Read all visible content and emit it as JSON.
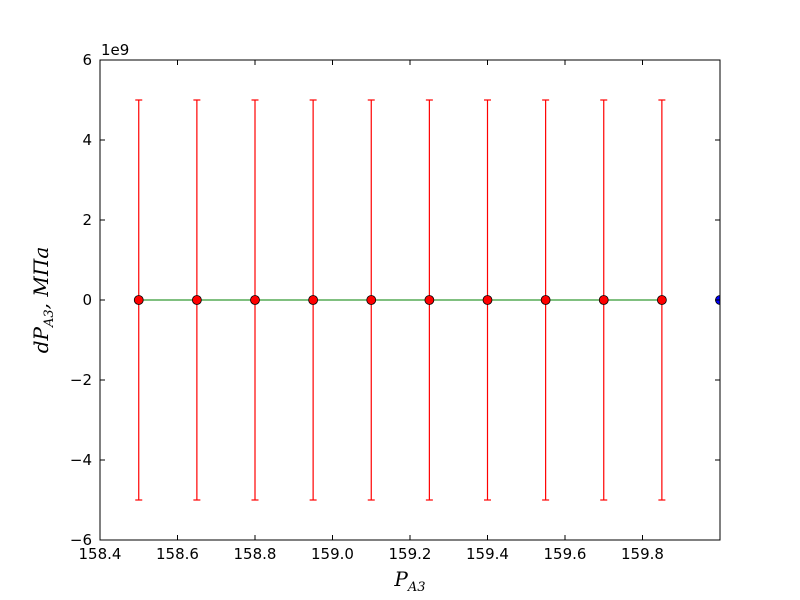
{
  "chart_data": {
    "type": "scatter",
    "xlabel": {
      "main": "P",
      "sub": "A3"
    },
    "ylabel": {
      "main": "dP",
      "sub": "A3",
      "suffix": ",  МПа"
    },
    "y_multiplier": "1e9",
    "xlim": [
      158.4,
      160.0
    ],
    "ylim": [
      -6,
      6
    ],
    "x_ticks": [
      158.4,
      158.6,
      158.8,
      159.0,
      159.2,
      159.4,
      159.6,
      159.8
    ],
    "x_tick_labels": [
      "158.4",
      "158.6",
      "158.8",
      "159.0",
      "159.2",
      "159.4",
      "159.6",
      "159.8"
    ],
    "y_ticks": [
      -6,
      -4,
      -2,
      0,
      2,
      4,
      6
    ],
    "y_tick_labels": [
      "−6",
      "−4",
      "−2",
      "0",
      "2",
      "4",
      "6"
    ],
    "grid": false,
    "series": [
      {
        "style": "errorbar",
        "color": "#ff0000",
        "x": [
          158.5,
          158.65,
          158.8,
          158.95,
          159.1,
          159.25,
          159.4,
          159.55,
          159.7,
          159.85
        ],
        "y": [
          0,
          0,
          0,
          0,
          0,
          0,
          0,
          0,
          0,
          0
        ],
        "yerr": [
          5,
          5,
          5,
          5,
          5,
          5,
          5,
          5,
          5,
          5
        ]
      },
      {
        "style": "line",
        "color": "#008000",
        "x": [
          158.5,
          159.85
        ],
        "y": [
          0,
          0
        ]
      },
      {
        "style": "marker",
        "color": "#0000ff",
        "x": [
          160.0
        ],
        "y": [
          0
        ]
      }
    ]
  }
}
